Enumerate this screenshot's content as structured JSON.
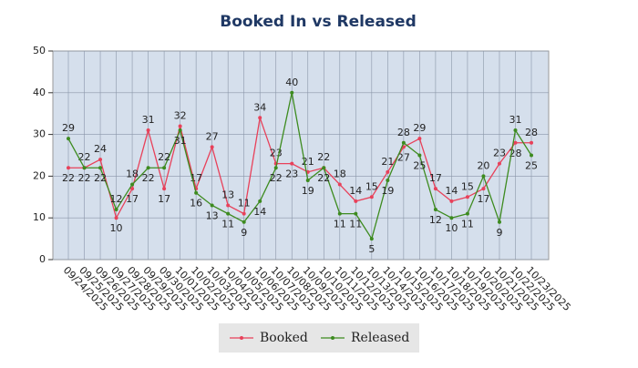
{
  "chart_data": {
    "type": "line",
    "title": "Booked In vs Released",
    "categories": [
      "09/24/2025",
      "09/25/2025",
      "09/26/2025",
      "09/27/2025",
      "09/28/2025",
      "09/29/2025",
      "09/30/2025",
      "10/01/2025",
      "10/02/2025",
      "10/03/2025",
      "10/04/2025",
      "10/05/2025",
      "10/06/2025",
      "10/07/2025",
      "10/08/2025",
      "10/09/2025",
      "10/10/2025",
      "10/11/2025",
      "10/12/2025",
      "10/13/2025",
      "10/14/2025",
      "10/15/2025",
      "10/16/2025",
      "10/17/2025",
      "10/18/2025",
      "10/19/2025",
      "10/20/2025",
      "10/21/2025",
      "10/22/2025",
      "10/23/2025"
    ],
    "series": [
      {
        "name": "Booked",
        "color": "#e8415a",
        "values": [
          22,
          22,
          24,
          10,
          17,
          31,
          17,
          32,
          17,
          27,
          13,
          11,
          34,
          23,
          23,
          21,
          22,
          18,
          14,
          15,
          21,
          27,
          29,
          17,
          14,
          15,
          17,
          23,
          28,
          28
        ]
      },
      {
        "name": "Released",
        "color": "#3d8b1f",
        "values": [
          29,
          22,
          22,
          12,
          18,
          22,
          22,
          31,
          16,
          13,
          11,
          9,
          14,
          22,
          40,
          19,
          22,
          11,
          11,
          5,
          19,
          28,
          25,
          12,
          10,
          11,
          20,
          9,
          31,
          25
        ]
      }
    ],
    "ylim": [
      0,
      50
    ],
    "yticks": [
      0,
      10,
      20,
      30,
      40,
      50
    ],
    "grid": true
  }
}
